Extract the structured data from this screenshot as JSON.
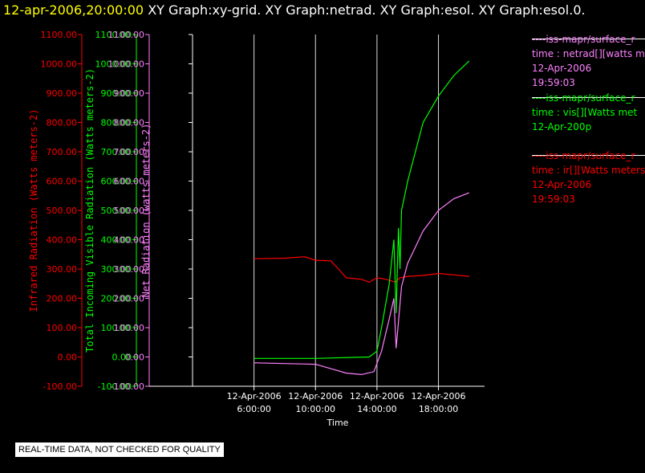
{
  "header": {
    "timestamp": "12-apr-2006,20:00:00",
    "titles": "XY Graph:xy-grid.  XY Graph:netrad.  XY Graph:esol.  XY Graph:esol.0."
  },
  "notice": "REAL-TIME DATA, NOT CHECKED FOR QUALITY",
  "colors": {
    "infrared": "#ff0000",
    "visible": "#00ff00",
    "net": "#ff80ff",
    "grid": "#ffffff",
    "axis": "#ffffff"
  },
  "legend": [
    {
      "lines": [
        "----iss-mapr/surface_r",
        "time : netrad[][watts m",
        "12-Apr-2006",
        "19:59:03"
      ],
      "color": "#ff80ff"
    },
    {
      "lines": [
        "----iss-mapr/surface_r",
        "time : vis[][Watts met",
        "12-Apr-200p"
      ],
      "color": "#00ff00"
    },
    {
      "lines": [
        "----iss-mapr/surface_r",
        "time : ir[][Watts meters",
        "12-Apr-2006",
        "19:59:03"
      ],
      "color": "#ff0000"
    }
  ],
  "chart_data": {
    "type": "line",
    "xlabel": "Time",
    "x_ticks": [
      {
        "hour": 6,
        "line1": "12-Apr-2006",
        "line2": "6:00:00"
      },
      {
        "hour": 10,
        "line1": "12-Apr-2006",
        "line2": "10:00:00"
      },
      {
        "hour": 14,
        "line1": "12-Apr-2006",
        "line2": "14:00:00"
      },
      {
        "hour": 18,
        "line1": "12-Apr-2006",
        "line2": "18:00:00"
      }
    ],
    "xlim_hours": [
      2,
      21
    ],
    "ylim": [
      -100,
      1100
    ],
    "y_ticks": [
      "1100.00",
      "1000.00",
      "900.00",
      "800.00",
      "700.00",
      "600.00",
      "500.00",
      "400.00",
      "300.00",
      "200.00",
      "100.00",
      "0.00",
      "-100.00"
    ],
    "grid": "vertical at labeled x ticks",
    "axes": [
      {
        "label": "Infrared Radiation (Watts meters-2)",
        "color": "#ff0000"
      },
      {
        "label": "Total Incoming Visible Radiation (Watts meters-2)",
        "color": "#00ff00"
      },
      {
        "label": "Net Radiation (watts meters-2)",
        "color": "#ff80ff"
      }
    ],
    "series": [
      {
        "color": "#ff0000",
        "x": [
          6,
          8,
          9.3,
          10,
          11,
          11.5,
          12,
          13,
          13.5,
          14,
          14.6,
          15.2,
          15.5,
          16,
          17,
          18,
          19,
          20
        ],
        "y": [
          335,
          337,
          342,
          330,
          328,
          300,
          270,
          265,
          255,
          270,
          265,
          255,
          270,
          275,
          278,
          285,
          280,
          275
        ]
      },
      {
        "color": "#00ff00",
        "x": [
          6,
          10,
          13.5,
          14,
          14.3,
          14.8,
          15.1,
          15.25,
          15.4,
          15.5,
          15.6,
          15.8,
          16,
          17,
          18,
          19,
          20
        ],
        "y": [
          -5,
          -5,
          0,
          20,
          100,
          250,
          400,
          150,
          440,
          300,
          500,
          550,
          600,
          800,
          890,
          960,
          1010
        ]
      },
      {
        "color": "#ff80ff",
        "x": [
          6,
          10,
          11,
          12,
          13,
          13.8,
          14.3,
          14.8,
          15.1,
          15.25,
          15.4,
          15.6,
          16,
          17,
          18,
          19,
          20
        ],
        "y": [
          -20,
          -25,
          -40,
          -55,
          -60,
          -50,
          20,
          130,
          200,
          30,
          120,
          240,
          320,
          430,
          500,
          540,
          560
        ]
      }
    ]
  }
}
